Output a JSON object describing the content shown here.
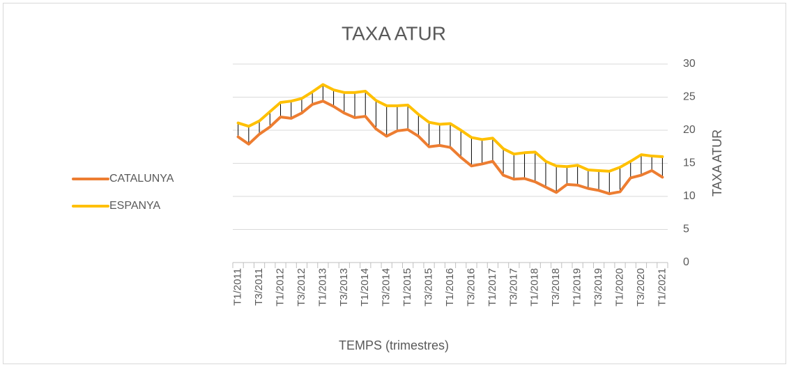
{
  "chart_data": {
    "type": "line",
    "title": "TAXA ATUR",
    "x_label": "TEMPS (trimestres)",
    "y_label": "TAXA ATUR",
    "categories": [
      "T1/2011",
      null,
      "T3/2011",
      null,
      "T1/2012",
      null,
      "T3/2012",
      null,
      "T1/2013",
      null,
      "T3/2013",
      null,
      "T1/2014",
      null,
      "T3/2014",
      null,
      "T1/2015",
      null,
      "T3/2015",
      null,
      "T1/2016",
      null,
      "T3/2016",
      null,
      "T1/2017",
      null,
      "T3/2017",
      null,
      "T1/2018",
      null,
      "T3/2018",
      null,
      "T1/2019",
      null,
      "T3/2019",
      null,
      "T1/2020",
      null,
      "T3/2020",
      null,
      "T1/2021"
    ],
    "series": [
      {
        "name": "CATALUNYA",
        "color": "#ED7D31",
        "values": [
          19.0,
          17.9,
          19.4,
          20.5,
          22.0,
          21.8,
          22.6,
          23.9,
          24.4,
          23.6,
          22.6,
          21.9,
          22.1,
          20.2,
          19.1,
          19.9,
          20.1,
          19.1,
          17.5,
          17.7,
          17.4,
          15.9,
          14.6,
          14.9,
          15.3,
          13.2,
          12.6,
          12.7,
          12.2,
          11.4,
          10.6,
          11.8,
          11.7,
          11.2,
          10.9,
          10.4,
          10.7,
          12.8,
          13.2,
          13.9,
          12.9
        ]
      },
      {
        "name": "ESPANYA",
        "color": "#FFC000",
        "values": [
          21.1,
          20.6,
          21.4,
          22.8,
          24.2,
          24.4,
          24.8,
          25.8,
          26.9,
          26.1,
          25.7,
          25.7,
          25.9,
          24.5,
          23.7,
          23.7,
          23.8,
          22.4,
          21.2,
          20.9,
          21.0,
          20.0,
          18.9,
          18.6,
          18.8,
          17.2,
          16.4,
          16.6,
          16.7,
          15.3,
          14.6,
          14.5,
          14.7,
          14.0,
          13.9,
          13.8,
          14.4,
          15.3,
          16.3,
          16.1,
          16.0
        ]
      }
    ],
    "ylim": [
      0,
      30
    ],
    "yticks": [
      0,
      5,
      10,
      15,
      20,
      25,
      30
    ],
    "grid": true,
    "high_low_lines": true,
    "legend": "left"
  }
}
